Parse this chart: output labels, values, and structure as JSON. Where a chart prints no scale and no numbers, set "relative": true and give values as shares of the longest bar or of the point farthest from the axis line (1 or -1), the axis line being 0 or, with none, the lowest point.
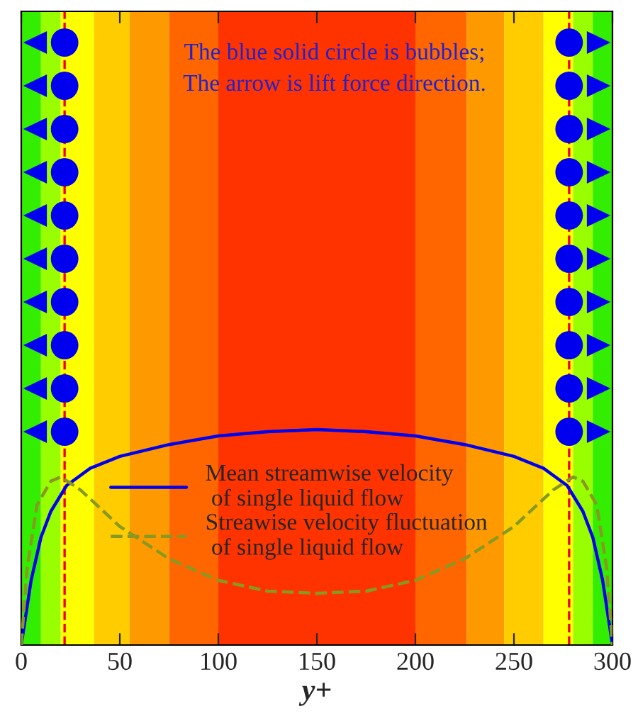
{
  "chart_data": {
    "type": "line",
    "relative": true,
    "xlabel": "y+",
    "x": [
      0,
      2,
      5,
      10,
      15,
      23,
      35,
      50,
      75,
      100,
      125,
      150,
      175,
      200,
      225,
      250,
      265,
      277,
      285,
      290,
      295,
      298,
      300
    ],
    "series": [
      {
        "name": "Mean streamwise velocity\n of single liquid flow",
        "color": "#0000ee",
        "line_style": "solid",
        "values": [
          0,
          0.12,
          0.3,
          0.5,
          0.62,
          0.74,
          0.82,
          0.875,
          0.93,
          0.97,
          0.99,
          1,
          0.99,
          0.97,
          0.93,
          0.875,
          0.82,
          0.74,
          0.62,
          0.5,
          0.3,
          0.12,
          0
        ]
      },
      {
        "name": "Streawise velocity fluctuation\n of single liquid flow",
        "color": "#889922",
        "line_style": "dashed",
        "x": [
          0,
          3,
          8,
          15,
          20,
          30,
          50,
          75,
          100,
          125,
          150,
          175,
          200,
          225,
          250,
          270,
          280,
          285,
          292,
          297,
          300
        ],
        "values": [
          0,
          0.36,
          0.65,
          0.76,
          0.78,
          0.72,
          0.55,
          0.4,
          0.3,
          0.25,
          0.24,
          0.25,
          0.3,
          0.4,
          0.55,
          0.72,
          0.78,
          0.76,
          0.65,
          0.36,
          0
        ]
      }
    ],
    "xlim": [
      0,
      300
    ],
    "xticks": [
      0,
      50,
      100,
      150,
      200,
      250,
      300
    ],
    "tick_labels": "x",
    "legend": "center",
    "grid": false,
    "bands": [
      {
        "axis": "x",
        "from": 0,
        "to": 10,
        "color": "#33ee00"
      },
      {
        "axis": "x",
        "from": 10,
        "to": 20,
        "color": "#99ff00"
      },
      {
        "axis": "x",
        "from": 20,
        "to": 37,
        "color": "#ffff00"
      },
      {
        "axis": "x",
        "from": 37,
        "to": 55,
        "color": "#ffcc00"
      },
      {
        "axis": "x",
        "from": 55,
        "to": 75,
        "color": "#ff9900"
      },
      {
        "axis": "x",
        "from": 75,
        "to": 100,
        "color": "#ff6600"
      },
      {
        "axis": "x",
        "from": 100,
        "to": 200,
        "color": "#ff3300"
      },
      {
        "axis": "x",
        "from": 200,
        "to": 226,
        "color": "#ff6600"
      },
      {
        "axis": "x",
        "from": 226,
        "to": 245,
        "color": "#ff9900"
      },
      {
        "axis": "x",
        "from": 245,
        "to": 265,
        "color": "#ffcc00"
      },
      {
        "axis": "x",
        "from": 265,
        "to": 280,
        "color": "#ffff00"
      },
      {
        "axis": "x",
        "from": 280,
        "to": 290,
        "color": "#99ff00"
      },
      {
        "axis": "x",
        "from": 290,
        "to": 300,
        "color": "#33ee00"
      }
    ],
    "ref_lines": [
      {
        "axis": "x",
        "value": 22,
        "color": "#ee0000",
        "line_style": "dashed"
      },
      {
        "axis": "x",
        "value": 278,
        "color": "#ee0000",
        "line_style": "dashed"
      }
    ],
    "annotations": [
      "The blue solid circle is bubbles;\nThe arrow is lift force direction."
    ]
  }
}
